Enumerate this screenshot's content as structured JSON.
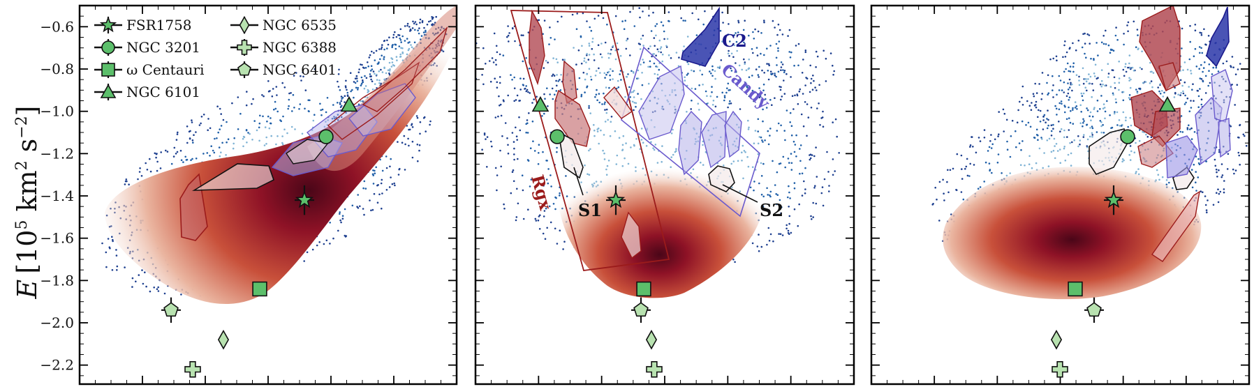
{
  "chart_data": {
    "type": "scatter",
    "ylabel": "E [10^5 km^2 s^-2]",
    "ylabel_parts": {
      "sym": "E",
      "open": "[10",
      "exp1": "5",
      "mid": " km",
      "exp2": "2",
      "s": " s",
      "exp3": "−2",
      "close": "]"
    },
    "ylim": [
      -2.29,
      -0.5
    ],
    "yticks": [
      -2.2,
      -2.0,
      -1.8,
      -1.6,
      -1.4,
      -1.2,
      -1.0,
      -0.8,
      -0.6
    ],
    "ytick_labels": [
      "−2.2",
      "−2.0",
      "−1.8",
      "−1.6",
      "−1.4",
      "−1.2",
      "−1.0",
      "−0.8",
      "−0.6"
    ],
    "grid": false,
    "legend_position": "top-left",
    "legend": [
      {
        "name": "FSR1758",
        "marker": "star"
      },
      {
        "name": "NGC 3201",
        "marker": "circle"
      },
      {
        "name": "ω Centauri",
        "marker": "square"
      },
      {
        "name": "NGC 6101",
        "marker": "triangle"
      },
      {
        "name": "NGC 6535",
        "marker": "diamond"
      },
      {
        "name": "NGC 6388",
        "marker": "plus"
      },
      {
        "name": "NGC 6401",
        "marker": "pentagon"
      }
    ],
    "panels": [
      {
        "id": "left",
        "clusters": [
          {
            "name": "FSR1758",
            "marker": "star",
            "y": -1.42,
            "err": 0.07
          },
          {
            "name": "NGC 3201",
            "marker": "circle",
            "y": -1.12,
            "err": 0.02
          },
          {
            "name": "ω Centauri",
            "marker": "square",
            "y": -1.84,
            "err": 0.01
          },
          {
            "name": "NGC 6101",
            "marker": "triangle",
            "y": -0.97,
            "err": 0.02
          },
          {
            "name": "NGC 6535",
            "marker": "diamond",
            "y": -2.08,
            "err": 0.01
          },
          {
            "name": "NGC 6388",
            "marker": "plus",
            "y": -2.22,
            "err": 0.01
          },
          {
            "name": "NGC 6401",
            "marker": "pentagon",
            "y": -1.94,
            "err": 0.06
          }
        ],
        "annotations": []
      },
      {
        "id": "middle",
        "clusters": [
          {
            "name": "FSR1758",
            "marker": "star",
            "y": -1.42,
            "err": 0.07
          },
          {
            "name": "NGC 3201",
            "marker": "circle",
            "y": -1.12,
            "err": 0.02
          },
          {
            "name": "ω Centauri",
            "marker": "square",
            "y": -1.84,
            "err": 0.01
          },
          {
            "name": "NGC 6101",
            "marker": "triangle",
            "y": -0.97,
            "err": 0.02
          },
          {
            "name": "NGC 6535",
            "marker": "diamond",
            "y": -2.08,
            "err": 0.01
          },
          {
            "name": "NGC 6388",
            "marker": "plus",
            "y": -2.22,
            "err": 0.01
          },
          {
            "name": "NGC 6401",
            "marker": "pentagon",
            "y": -1.94,
            "err": 0.06
          }
        ],
        "annotations": [
          {
            "text": "C2",
            "color": "#1a1a8c"
          },
          {
            "text": "Candy",
            "color": "#6a5acd"
          },
          {
            "text": "Rgx",
            "color": "#9b1b1b"
          },
          {
            "text": "S1",
            "color": "#111111"
          },
          {
            "text": "S2",
            "color": "#111111"
          }
        ]
      },
      {
        "id": "right",
        "clusters": [
          {
            "name": "FSR1758",
            "marker": "star",
            "y": -1.42,
            "err": 0.07
          },
          {
            "name": "NGC 3201",
            "marker": "circle",
            "y": -1.12,
            "err": 0.02
          },
          {
            "name": "ω Centauri",
            "marker": "square",
            "y": -1.84,
            "err": 0.01
          },
          {
            "name": "NGC 6101",
            "marker": "triangle",
            "y": -0.97,
            "err": 0.02
          },
          {
            "name": "NGC 6535",
            "marker": "diamond",
            "y": -2.08,
            "err": 0.01
          },
          {
            "name": "NGC 6388",
            "marker": "plus",
            "y": -2.22,
            "err": 0.01
          },
          {
            "name": "NGC 6401",
            "marker": "pentagon",
            "y": -1.94,
            "err": 0.06
          }
        ],
        "annotations": []
      }
    ]
  },
  "colors": {
    "marker_fill": "#5cbf6b",
    "marker_fill_light": "#b8e2b0",
    "density_core": "#5e0a1e",
    "density_mid": "#c0392b",
    "density_outer": "#f3d2c8",
    "scatter_blue": "#1f5fa8",
    "scatter_light": "#7fb3d5",
    "rgx_color": "#9b1b1b",
    "candy_color": "#6a5acd",
    "c2_color": "#1a1a8c"
  }
}
